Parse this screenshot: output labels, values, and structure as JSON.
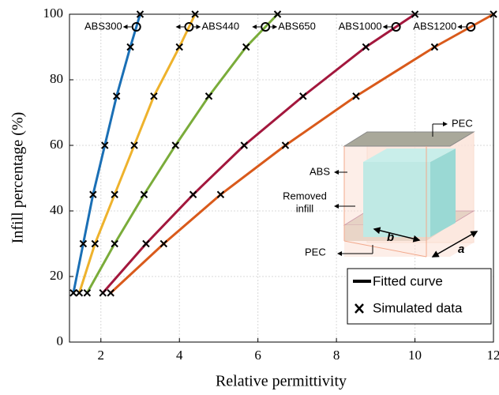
{
  "chart_data": {
    "type": "line",
    "x_label": "Relative permittivity",
    "y_label": "Infill percentage (%)",
    "xlim": [
      1.2,
      12
    ],
    "ylim": [
      0,
      100
    ],
    "xticks": [
      2,
      4,
      6,
      8,
      10,
      12
    ],
    "yticks": [
      0,
      20,
      40,
      60,
      80,
      100
    ],
    "grid": true,
    "series": [
      {
        "name": "ABS300",
        "color": "#1a6fb5",
        "x": [
          1.3,
          1.55,
          1.8,
          2.1,
          2.4,
          2.75,
          3.0
        ],
        "values": [
          15,
          30,
          45,
          60,
          75,
          90,
          100
        ]
      },
      {
        "name": "ABS440",
        "color": "#eeb22c",
        "x": [
          1.45,
          1.85,
          2.35,
          2.85,
          3.35,
          4.0,
          4.4
        ],
        "values": [
          15,
          30,
          45,
          60,
          75,
          90,
          100
        ]
      },
      {
        "name": "ABS650",
        "color": "#7aac3a",
        "x": [
          1.65,
          2.35,
          3.1,
          3.9,
          4.75,
          5.7,
          6.5
        ],
        "values": [
          15,
          30,
          45,
          60,
          75,
          90,
          100
        ]
      },
      {
        "name": "ABS1000",
        "color": "#a3173d",
        "x": [
          2.05,
          3.15,
          4.35,
          5.65,
          7.15,
          8.75,
          10.0
        ],
        "values": [
          15,
          30,
          45,
          60,
          75,
          90,
          100
        ]
      },
      {
        "name": "ABS1200",
        "color": "#d95a1b",
        "x": [
          2.25,
          3.6,
          5.05,
          6.7,
          8.5,
          10.5,
          12.0
        ],
        "values": [
          15,
          30,
          45,
          60,
          75,
          90,
          100
        ]
      }
    ],
    "legend_items": [
      "Fitted curve",
      "Simulated data"
    ]
  },
  "inset": {
    "top_label": "PEC",
    "abs_label": "ABS",
    "removed_label_1": "Removed",
    "removed_label_2": "infill",
    "dim_b": "b",
    "dim_a": "a",
    "bottom_label": "PEC"
  }
}
